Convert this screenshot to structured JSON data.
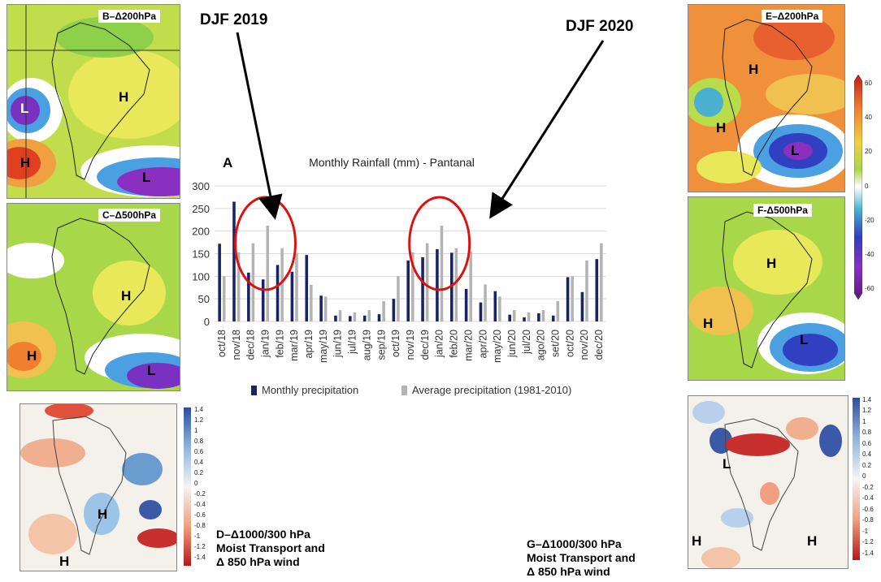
{
  "annotations": {
    "djf2019": "DJF 2019",
    "djf2020": "DJF 2020",
    "panel_a_letter": "A"
  },
  "panels": {
    "b_label": "B–Δ200hPa",
    "c_label": "C–Δ500hPa",
    "e_label": "E–Δ200hPa",
    "f_label": "F-Δ500hPa"
  },
  "pressure_marks": {
    "b": [
      "L",
      "H",
      "H",
      "L"
    ],
    "c": [
      "H",
      "H",
      "L"
    ],
    "e": [
      "H",
      "H",
      "L"
    ],
    "f": [
      "H",
      "H",
      "L"
    ],
    "d": [
      "H",
      "H"
    ],
    "g": [
      "L",
      "H",
      "H"
    ]
  },
  "colorbar_top": {
    "ticks": [
      "60",
      "40",
      "20",
      "0",
      "-20",
      "-40",
      "-60"
    ]
  },
  "colorbar_bottom": {
    "ticks": [
      "1.4",
      "1.2",
      "1",
      "0.8",
      "0.6",
      "0.4",
      "0.2",
      "0",
      "-0.2",
      "-0.4",
      "-0.6",
      "-0.8",
      "-1",
      "-1.2",
      "-1.4"
    ]
  },
  "captions": {
    "d": [
      "D–Δ1000/300 hPa",
      "Moist Transport and",
      "Δ 850 hPa wind"
    ],
    "g": [
      "G–Δ1000/300 hPa",
      "Moist Transport and",
      "Δ 850 hPa wind"
    ]
  },
  "colors": {
    "monthly": "#1a2463",
    "average": "#b4b4b4",
    "highlight": "#e01010"
  },
  "chart_data": {
    "type": "bar",
    "title": "Monthly Rainfall (mm) - Pantanal",
    "categories": [
      "oct/18",
      "nov/18",
      "dec/18",
      "jan/19",
      "feb/19",
      "mar/19",
      "apr/19",
      "may/19",
      "jun/19",
      "jul/19",
      "aug/19",
      "sep/19",
      "oct/19",
      "nov/19",
      "dec/19",
      "jan/20",
      "feb/20",
      "mar/20",
      "apr/20",
      "may/20",
      "jun/20",
      "jul/20",
      "ago/20",
      "set/20",
      "oct/20",
      "nov/20",
      "dec/20"
    ],
    "series": [
      {
        "name": "Monthly precipitation",
        "values": [
          172,
          265,
          108,
          93,
          125,
          110,
          147,
          57,
          13,
          12,
          13,
          16,
          50,
          135,
          142,
          160,
          152,
          72,
          42,
          67,
          15,
          9,
          18,
          13,
          98,
          65,
          138
        ]
      },
      {
        "name": "Average precipitation (1981-2010)",
        "values": [
          100,
          153,
          173,
          212,
          162,
          152,
          81,
          55,
          25,
          20,
          25,
          45,
          100,
          153,
          173,
          212,
          162,
          155,
          82,
          55,
          25,
          20,
          25,
          45,
          100,
          135,
          173
        ]
      }
    ],
    "ylim": [
      0,
      300
    ],
    "yticks": [
      "0",
      "50",
      "100",
      "150",
      "200",
      "250",
      "300"
    ],
    "highlighted": [
      "jan/19",
      "jan/20"
    ],
    "xlabel": "",
    "ylabel": ""
  }
}
